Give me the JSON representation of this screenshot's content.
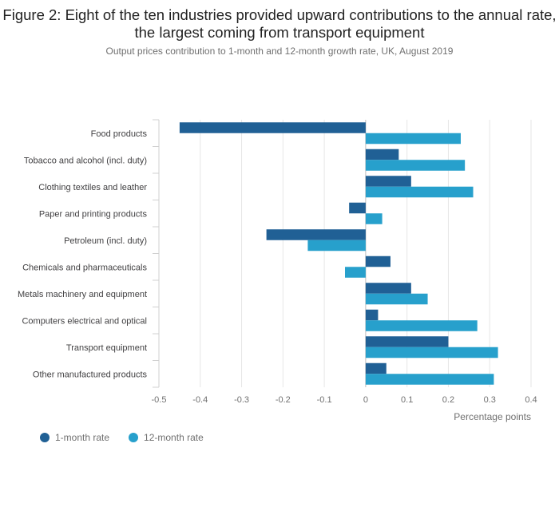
{
  "title": "Figure 2: Eight of the ten industries provided upward contributions to the annual rate, the largest coming from transport equipment",
  "subtitle": "Output prices contribution to 1-month and 12-month growth rate, UK, August 2019",
  "chart_data": {
    "type": "bar",
    "orientation": "horizontal",
    "categories": [
      "Food products",
      "Tobacco and alcohol (incl. duty)",
      "Clothing textiles and leather",
      "Paper and printing products",
      "Petroleum (incl. duty)",
      "Chemicals and pharmaceuticals",
      "Metals machinery and equipment",
      "Computers electrical and optical",
      "Transport equipment",
      "Other manufactured products"
    ],
    "series": [
      {
        "name": "1-month rate",
        "color": "#206095",
        "values": [
          -0.45,
          0.08,
          0.11,
          -0.04,
          -0.24,
          0.06,
          0.11,
          0.03,
          0.2,
          0.05
        ]
      },
      {
        "name": "12-month rate",
        "color": "#27a0cc",
        "values": [
          0.23,
          0.24,
          0.26,
          0.04,
          -0.14,
          -0.05,
          0.15,
          0.27,
          0.32,
          0.31
        ]
      }
    ],
    "xlim": [
      -0.5,
      0.4
    ],
    "xticks": [
      "-0.5",
      "-0.4",
      "-0.3",
      "-0.2",
      "-0.1",
      "0",
      "0.1",
      "0.2",
      "0.3",
      "0.4"
    ],
    "xlabel": "Percentage points",
    "ylabel": "",
    "grid": true,
    "legend_position": "bottom-left"
  }
}
